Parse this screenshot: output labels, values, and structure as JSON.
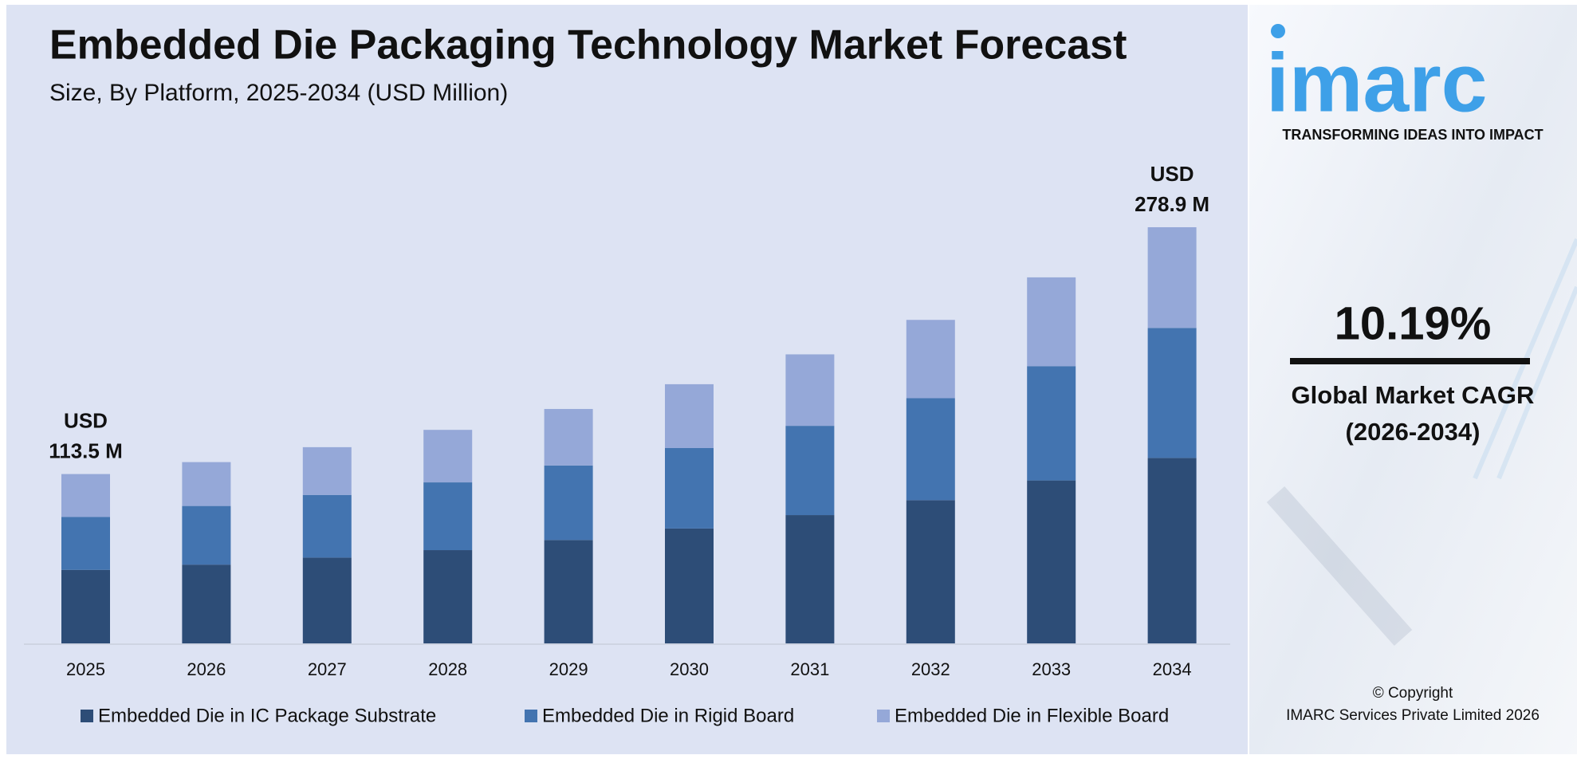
{
  "chart_data": {
    "type": "stacked-bar",
    "title": "Embedded Die Packaging Technology Market Forecast",
    "subtitle": "Size, By Platform, 2025-2034 (USD Million)",
    "categories": [
      "2025",
      "2026",
      "2027",
      "2028",
      "2029",
      "2030",
      "2031",
      "2032",
      "2033",
      "2034"
    ],
    "series": [
      {
        "name": "Embedded Die in IC Package Substrate",
        "color": "#2d4d77",
        "values": [
          49.3,
          52.8,
          57.5,
          62.5,
          69.3,
          77.0,
          86.0,
          96.0,
          109.2,
          124.3
        ]
      },
      {
        "name": "Embedded Die in Rigid Board",
        "color": "#4374b0",
        "values": [
          35.5,
          39.3,
          42.0,
          45.4,
          49.9,
          53.9,
          59.8,
          68.3,
          76.6,
          87.1
        ]
      },
      {
        "name": "Embedded Die in Flexible Board",
        "color": "#95a8d8",
        "values": [
          28.7,
          29.4,
          32.0,
          35.2,
          37.9,
          42.8,
          47.9,
          52.5,
          59.5,
          67.5
        ]
      }
    ],
    "annotations": [
      {
        "category": "2025",
        "prefix": "USD",
        "label": "113.5 M",
        "value": 113.5
      },
      {
        "category": "2034",
        "prefix": "USD",
        "label": "278.9 M",
        "value": 278.9
      }
    ],
    "legend": "bottom"
  },
  "sidebar": {
    "logo": "imarc",
    "tagline": "TRANSFORMING IDEAS INTO IMPACT",
    "cagr": "10.19%",
    "cagr_label": "Global Market CAGR",
    "cagr_period": "(2026-2034)",
    "copyright": "© Copyright",
    "company": "IMARC Services Private Limited 2026"
  }
}
